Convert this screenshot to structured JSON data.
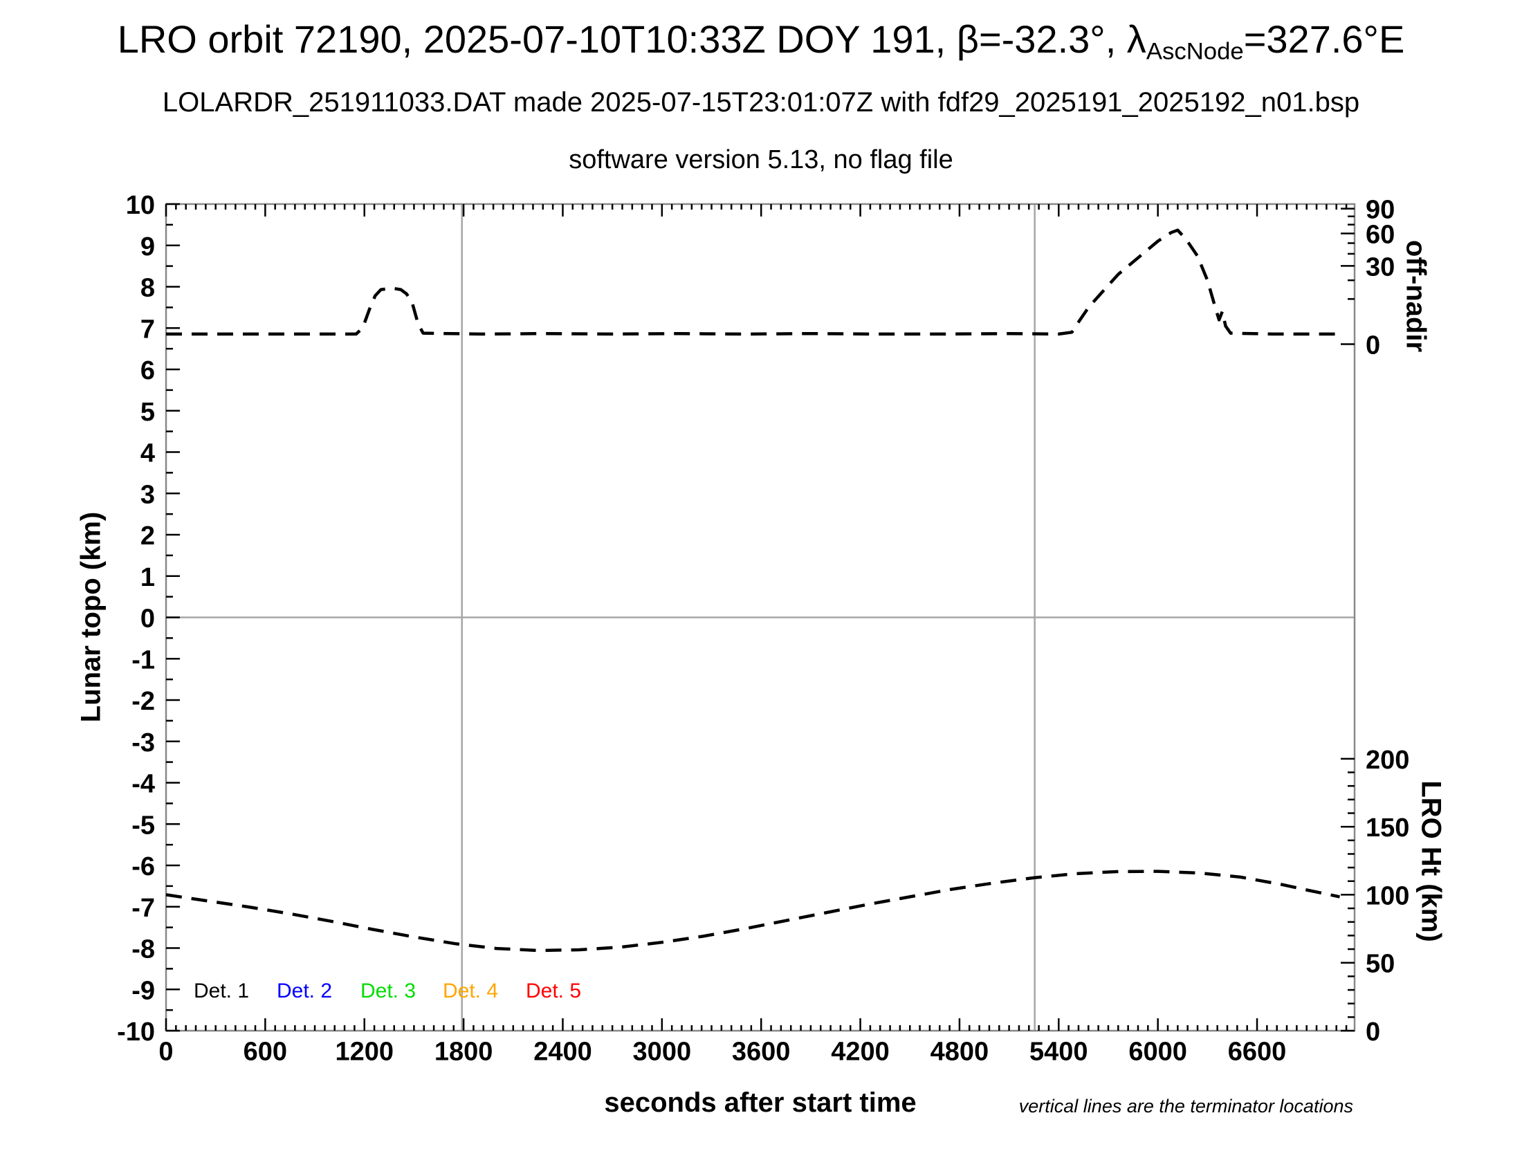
{
  "title": {
    "prefix": "LRO orbit 72190, 2025-07-10T10:33Z DOY 191, β=-32.3°, λ",
    "subscript": "AscNode",
    "suffix": "=327.6°E"
  },
  "subtitle1": "LOLARDR_251911033.DAT made 2025-07-15T23:01:07Z with fdf29_2025191_2025192_n01.bsp",
  "subtitle2": "software version 5.13, no flag file",
  "footnote": "vertical lines are the terminator locations",
  "legend": {
    "items": [
      {
        "label": "Det. 1",
        "color": "#000000"
      },
      {
        "label": "Det. 2",
        "color": "#0000ff"
      },
      {
        "label": "Det. 3",
        "color": "#00dd00"
      },
      {
        "label": "Det. 4",
        "color": "#ffa500"
      },
      {
        "label": "Det. 5",
        "color": "#ff0000"
      }
    ]
  },
  "chart_data": {
    "type": "line",
    "xlabel": "seconds after start time",
    "ylabel_left": "Lunar topo (km)",
    "ylabel_right_top": "off-nadir",
    "ylabel_right_bottom": "LRO Ht (km)",
    "xlim": [
      0,
      7190
    ],
    "ylim_left": [
      -10,
      10
    ],
    "x_ticks": [
      0,
      600,
      1200,
      1800,
      2400,
      3000,
      3600,
      4200,
      4800,
      5400,
      6000,
      6600
    ],
    "x_minor_step": 60,
    "y_ticks_left": [
      -10,
      -9,
      -8,
      -7,
      -6,
      -5,
      -4,
      -3,
      -2,
      -1,
      0,
      1,
      2,
      3,
      4,
      5,
      6,
      7,
      8,
      9,
      10
    ],
    "y_minor_step_left": 0.5,
    "grid": false,
    "zero_line_v": 0,
    "terminator_lines_s": [
      1790,
      5255
    ],
    "offnadir_axis": {
      "tick_degrees": [
        0,
        30,
        60,
        90
      ],
      "minor_tick_degrees": [
        10,
        20,
        40,
        50,
        70,
        80
      ],
      "v_at_0deg": 6.61,
      "scale": 3.28,
      "mapping": "v = v_at_0deg + scale*sqrt(deg/90)"
    },
    "lro_ht_axis": {
      "tick_km": [
        0,
        50,
        100,
        150,
        200
      ],
      "minor_step_km": 10,
      "v_at_0km": -10.0,
      "v_per_km": 0.0329,
      "mapping": "v = v_at_0km + km*v_per_km"
    },
    "series": [
      {
        "name": "off-nadir angle",
        "units": "degrees",
        "axis": "right-top",
        "color": "#000000",
        "style": "dashed",
        "points": [
          [
            0,
            0.5
          ],
          [
            300,
            0.5
          ],
          [
            600,
            0.5
          ],
          [
            900,
            0.5
          ],
          [
            1150,
            0.5
          ],
          [
            1190,
            1.3
          ],
          [
            1230,
            5.9
          ],
          [
            1265,
            11.5
          ],
          [
            1300,
            14.6
          ],
          [
            1370,
            15.3
          ],
          [
            1420,
            14.6
          ],
          [
            1455,
            12.4
          ],
          [
            1490,
            8.2
          ],
          [
            1525,
            2.0
          ],
          [
            1555,
            0.6
          ],
          [
            1900,
            0.5
          ],
          [
            2300,
            0.55
          ],
          [
            2700,
            0.5
          ],
          [
            3100,
            0.55
          ],
          [
            3500,
            0.5
          ],
          [
            3900,
            0.55
          ],
          [
            4300,
            0.5
          ],
          [
            4700,
            0.5
          ],
          [
            5100,
            0.55
          ],
          [
            5400,
            0.5
          ],
          [
            5480,
            0.7
          ],
          [
            5520,
            2.4
          ],
          [
            5580,
            6.6
          ],
          [
            5660,
            13.0
          ],
          [
            5760,
            23.9
          ],
          [
            5880,
            36.5
          ],
          [
            6000,
            52.0
          ],
          [
            6080,
            61.0
          ],
          [
            6120,
            63.7
          ],
          [
            6170,
            54.0
          ],
          [
            6240,
            38.0
          ],
          [
            6300,
            20.0
          ],
          [
            6340,
            8.2
          ],
          [
            6370,
            2.9
          ],
          [
            6390,
            5.2
          ],
          [
            6410,
            1.6
          ],
          [
            6440,
            0.6
          ],
          [
            6700,
            0.5
          ],
          [
            6900,
            0.5
          ],
          [
            7100,
            0.5
          ]
        ]
      },
      {
        "name": "LRO height",
        "units": "km",
        "axis": "right-bottom",
        "color": "#000000",
        "style": "dashed",
        "points": [
          [
            0,
            100
          ],
          [
            250,
            95.5
          ],
          [
            500,
            91
          ],
          [
            750,
            86
          ],
          [
            1000,
            80.5
          ],
          [
            1250,
            74.5
          ],
          [
            1500,
            69
          ],
          [
            1750,
            64
          ],
          [
            2000,
            60.5
          ],
          [
            2250,
            59
          ],
          [
            2500,
            59.5
          ],
          [
            2750,
            61.5
          ],
          [
            3000,
            65
          ],
          [
            3250,
            69.5
          ],
          [
            3500,
            75
          ],
          [
            3750,
            81
          ],
          [
            4000,
            87
          ],
          [
            4250,
            93
          ],
          [
            4500,
            98.5
          ],
          [
            4750,
            104
          ],
          [
            5000,
            108.5
          ],
          [
            5250,
            112.5
          ],
          [
            5500,
            115.5
          ],
          [
            5750,
            117
          ],
          [
            6000,
            117.2
          ],
          [
            6250,
            116
          ],
          [
            6500,
            113
          ],
          [
            6750,
            107.5
          ],
          [
            6900,
            103.5
          ],
          [
            7100,
            98.5
          ]
        ]
      }
    ],
    "colors": {
      "axis_box": "#888888",
      "terminator_line": "#a6a6a6",
      "zero_line": "#a6a6a6",
      "curve": "#000000"
    }
  }
}
